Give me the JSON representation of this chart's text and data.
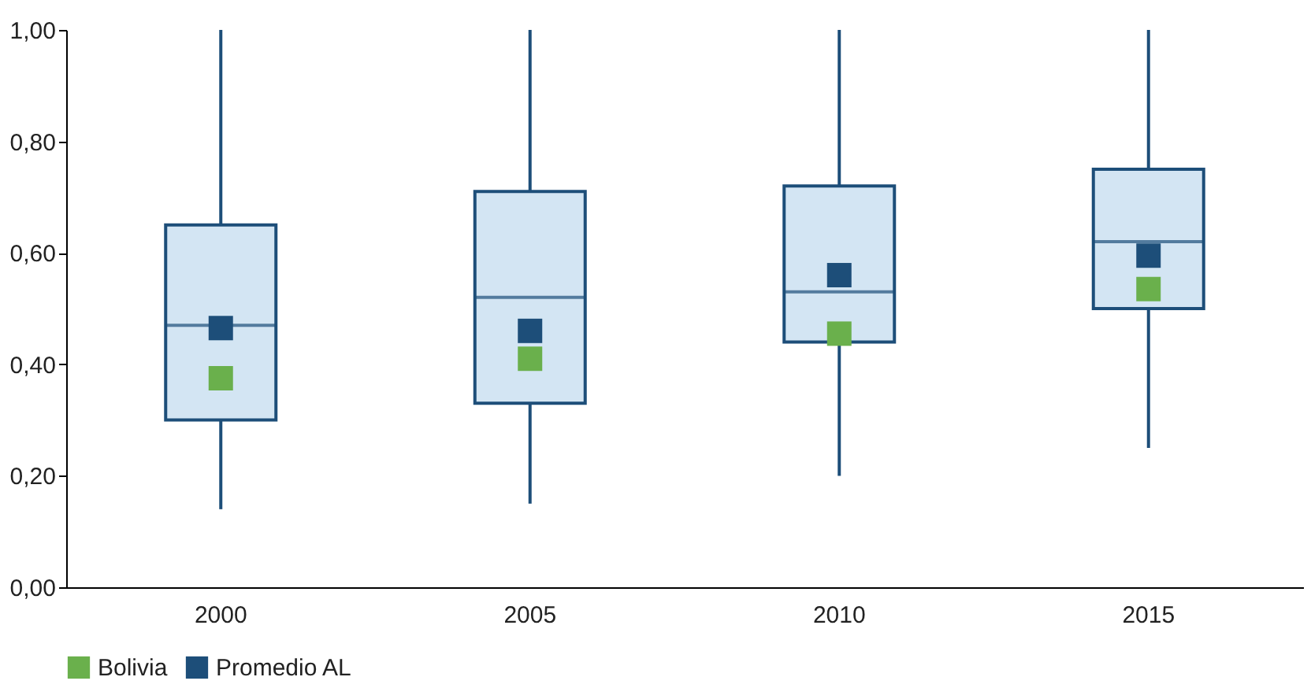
{
  "chart_data": {
    "type": "box",
    "categories": [
      "2000",
      "2005",
      "2010",
      "2015"
    ],
    "boxes": [
      {
        "low": 0.14,
        "q1": 0.3,
        "median": 0.47,
        "q3": 0.65,
        "high": 1.0
      },
      {
        "low": 0.15,
        "q1": 0.33,
        "median": 0.52,
        "q3": 0.71,
        "high": 1.0
      },
      {
        "low": 0.2,
        "q1": 0.44,
        "median": 0.53,
        "q3": 0.72,
        "high": 1.0
      },
      {
        "low": 0.25,
        "q1": 0.5,
        "median": 0.62,
        "q3": 0.75,
        "high": 1.0
      }
    ],
    "color": "#d3e5f3",
    "series": [
      {
        "name": "Bolivia",
        "type": "scatter",
        "color": "#6ab04c",
        "values": [
          0.375,
          0.41,
          0.455,
          0.535
        ]
      },
      {
        "name": "Promedio AL",
        "type": "scatter",
        "color": "#1d4e79",
        "values": [
          0.465,
          0.46,
          0.56,
          0.595
        ]
      }
    ],
    "ylim": [
      0,
      1
    ],
    "yticks": [
      {
        "value": 0,
        "label": "0,00"
      },
      {
        "value": 0.2,
        "label": "0,20"
      },
      {
        "value": 0.4,
        "label": "0,40"
      },
      {
        "value": 0.6,
        "label": "0,60"
      },
      {
        "value": 0.8,
        "label": "0,80"
      },
      {
        "value": 1.0,
        "label": "1,00"
      }
    ],
    "legend": "bottom",
    "marker": "square"
  }
}
